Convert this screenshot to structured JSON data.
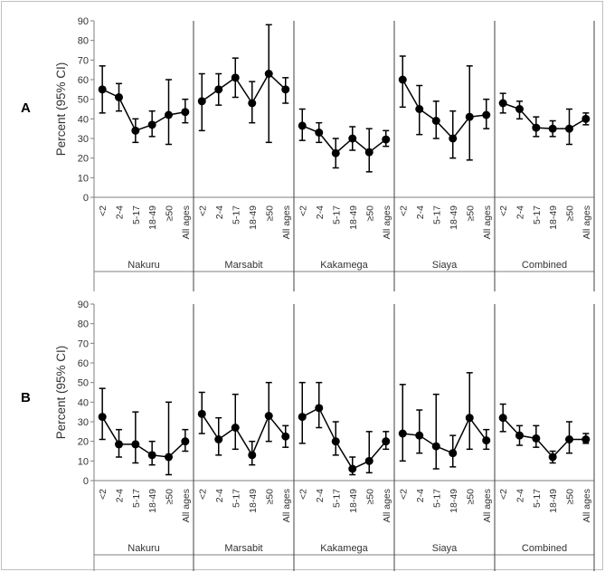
{
  "chart_data": [
    {
      "type": "line",
      "panel_label": "A",
      "ylabel": "Percent (95% CI)",
      "ylim": [
        0,
        90
      ],
      "yticks": [
        "0",
        "10",
        "20",
        "30",
        "40",
        "50",
        "60",
        "70",
        "80",
        "90"
      ],
      "categories": [
        "<2",
        "2-4",
        "5-17",
        "18-49",
        "≥50",
        "All ages"
      ],
      "groups": [
        {
          "name": "Nakuru",
          "values": [
            55,
            51,
            34,
            37,
            42,
            43.5
          ],
          "lower": [
            43,
            44,
            28,
            31,
            27,
            38
          ],
          "upper": [
            67,
            58,
            40,
            44,
            60,
            50
          ]
        },
        {
          "name": "Marsabit",
          "values": [
            49,
            55,
            61,
            48,
            63,
            55
          ],
          "lower": [
            34,
            47,
            51,
            38,
            28,
            48
          ],
          "upper": [
            63,
            63,
            71,
            59,
            88,
            61
          ]
        },
        {
          "name": "Kakamega",
          "values": [
            36.5,
            33,
            22.5,
            30,
            23,
            29.5
          ],
          "lower": [
            29,
            28,
            15,
            24,
            13,
            26
          ],
          "upper": [
            45,
            38,
            30,
            36,
            35,
            34
          ]
        },
        {
          "name": "Siaya",
          "values": [
            60,
            45,
            39,
            30,
            41,
            42
          ],
          "lower": [
            46,
            32,
            30,
            20,
            19,
            35
          ],
          "upper": [
            72,
            57,
            49,
            44,
            67,
            50
          ]
        },
        {
          "name": "Combined",
          "values": [
            48,
            45,
            35.5,
            35,
            35,
            40
          ],
          "lower": [
            43,
            40,
            31,
            31,
            27,
            37
          ],
          "upper": [
            53,
            49,
            41,
            39,
            45,
            43
          ]
        }
      ]
    },
    {
      "type": "line",
      "panel_label": "B",
      "ylabel": "Percent (95% CI)",
      "ylim": [
        0,
        90
      ],
      "yticks": [
        "0",
        "10",
        "20",
        "30",
        "40",
        "50",
        "60",
        "70",
        "80",
        "90"
      ],
      "categories": [
        "<2",
        "2-4",
        "5-17",
        "18-49",
        "≥50",
        "All ages"
      ],
      "groups": [
        {
          "name": "Nakuru",
          "values": [
            32.5,
            18.5,
            18.5,
            13,
            12,
            20
          ],
          "lower": [
            21,
            12,
            9,
            8,
            3,
            15
          ],
          "upper": [
            47,
            26,
            35,
            20,
            40,
            26
          ]
        },
        {
          "name": "Marsabit",
          "values": [
            34,
            21,
            27,
            13,
            33,
            22.5
          ],
          "lower": [
            24,
            13,
            16,
            8,
            20,
            17
          ],
          "upper": [
            45,
            32,
            44,
            20,
            50,
            28
          ]
        },
        {
          "name": "Kakamega",
          "values": [
            32.5,
            37,
            20,
            6,
            10,
            20
          ],
          "lower": [
            19,
            27,
            13,
            3,
            4,
            16
          ],
          "upper": [
            50,
            50,
            30,
            12,
            25,
            25
          ]
        },
        {
          "name": "Siaya",
          "values": [
            24,
            23,
            17.5,
            14,
            32,
            20.5
          ],
          "lower": [
            10,
            14,
            6,
            7,
            16,
            16
          ],
          "upper": [
            49,
            36,
            44,
            23,
            55,
            26
          ]
        },
        {
          "name": "Combined",
          "values": [
            32,
            23,
            21.5,
            12,
            21,
            21
          ],
          "lower": [
            25,
            18,
            17,
            9,
            14,
            19
          ],
          "upper": [
            39,
            28,
            28,
            15,
            30,
            24
          ]
        }
      ]
    }
  ]
}
